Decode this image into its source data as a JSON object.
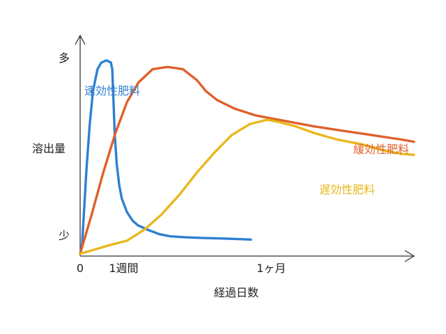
{
  "chart_data": {
    "type": "line",
    "title": "",
    "xlabel": "経過日数",
    "ylabel": "溶出量",
    "y_tick_labels": {
      "high": "多",
      "low": "少"
    },
    "x_tick_labels": [
      "0",
      "1週間",
      "1ヶ月"
    ],
    "x_tick_values": [
      0,
      7,
      30
    ],
    "xlim": [
      0,
      52
    ],
    "ylim": [
      0,
      100
    ],
    "grid": false,
    "legend": "inline labels next to each curve",
    "series": [
      {
        "name": "速効性肥料",
        "color": "#2f7fd0",
        "points": [
          [
            0,
            1
          ],
          [
            0.3,
            5
          ],
          [
            0.6,
            20
          ],
          [
            1,
            40
          ],
          [
            1.5,
            60
          ],
          [
            2,
            75
          ],
          [
            2.7,
            85
          ],
          [
            3.3,
            88
          ],
          [
            4.1,
            89
          ],
          [
            4.8,
            88
          ],
          [
            5,
            85
          ],
          [
            5.2,
            70
          ],
          [
            5.4,
            55
          ],
          [
            5.7,
            42
          ],
          [
            6.1,
            32
          ],
          [
            6.5,
            26
          ],
          [
            7.3,
            20
          ],
          [
            8.2,
            16
          ],
          [
            9,
            14
          ],
          [
            10.5,
            12
          ],
          [
            12.3,
            10
          ],
          [
            14,
            9
          ],
          [
            16.5,
            8.5
          ],
          [
            19.3,
            8.2
          ],
          [
            22,
            8
          ],
          [
            25,
            7.7
          ],
          [
            26.6,
            7.5
          ]
        ]
      },
      {
        "name": "緩効性肥料",
        "color": "#e0602a",
        "points": [
          [
            0,
            1
          ],
          [
            1.8,
            19
          ],
          [
            3.6,
            38
          ],
          [
            5.5,
            56
          ],
          [
            7.3,
            70
          ],
          [
            9.1,
            79
          ],
          [
            11.3,
            85
          ],
          [
            13.6,
            86
          ],
          [
            16,
            85
          ],
          [
            18.2,
            80
          ],
          [
            19.6,
            75
          ],
          [
            21.3,
            71
          ],
          [
            24.1,
            67
          ],
          [
            27.3,
            64
          ],
          [
            30.9,
            62
          ],
          [
            36.4,
            59
          ],
          [
            40.9,
            57
          ],
          [
            45.5,
            55
          ],
          [
            50,
            53
          ],
          [
            52,
            52
          ]
        ]
      },
      {
        "name": "遅効性肥料",
        "color": "#e8b81e",
        "points": [
          [
            0,
            1
          ],
          [
            2.3,
            3
          ],
          [
            4.6,
            5
          ],
          [
            7.3,
            7
          ],
          [
            10,
            12
          ],
          [
            12.7,
            19
          ],
          [
            15.5,
            28
          ],
          [
            18.2,
            38
          ],
          [
            20.9,
            47
          ],
          [
            23.6,
            55
          ],
          [
            26.4,
            60
          ],
          [
            29.1,
            62
          ],
          [
            30.9,
            61
          ],
          [
            33.6,
            59
          ],
          [
            36.4,
            56
          ],
          [
            40,
            53
          ],
          [
            43.6,
            51
          ],
          [
            47.3,
            48
          ],
          [
            50,
            46.5
          ],
          [
            52,
            46
          ]
        ]
      }
    ]
  }
}
